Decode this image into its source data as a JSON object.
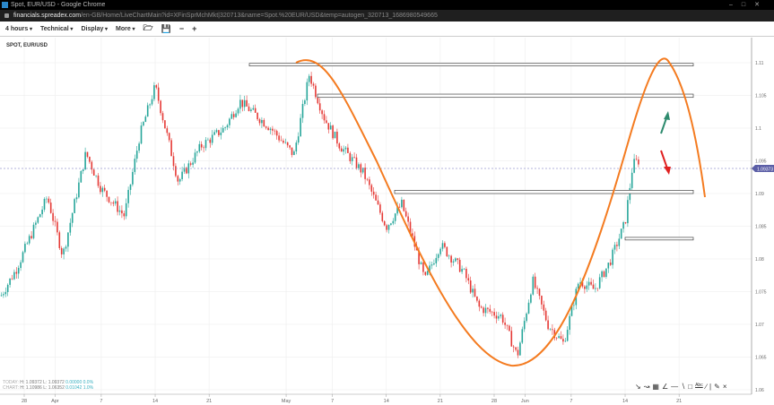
{
  "window": {
    "title": "Spot, EUR/USD - Google Chrome",
    "url_host": "financials.spreadex.com",
    "url_path": "/en-GB/Home/LiveChartMain?id=XFinSprMchMkt|320713&name=Spot.%20EUR/USD&temp=autogen_320713_1686980549665"
  },
  "toolbar": {
    "interval": "4 hours",
    "technical": "Technical",
    "display": "Display",
    "more": "More",
    "open_icon": "folder-open-icon",
    "save_icon": "save-icon",
    "zoom_out": "−",
    "zoom_in": "+"
  },
  "chart_title": "SPOT, EUR/USD",
  "legend": {
    "today": {
      "label": "TODAY:",
      "h": "H: 1.09372",
      "l": "L: 1.09372",
      "chg": "0.00000",
      "pct": "0.0%"
    },
    "chart": {
      "label": "CHART:",
      "h": "H: 1.10986",
      "l": "L: 1.06352",
      "chg": "0.01042",
      "pct": "1.0%"
    }
  },
  "drawing_tools": [
    "arrow",
    "curve",
    "fib-grid",
    "pitchfork",
    "horizontal-line",
    "trend-line",
    "rectangle",
    "text",
    "ray",
    "separator",
    "pencil",
    "close"
  ],
  "colors": {
    "up": "#26a69a",
    "down": "#e53935",
    "annotation": "#f47b20",
    "price_tag": "#5b5ea6",
    "up_arrow": "#2e8b6e",
    "down_arrow": "#e02020"
  },
  "chart_data": {
    "type": "candlestick",
    "title": "SPOT, EUR/USD",
    "current_price": "1.09373",
    "y_ticks": [
      "1.11",
      "1.105",
      "1.1",
      "1.095",
      "1.09",
      "1.085",
      "1.08",
      "1.075",
      "1.07",
      "1.065",
      "1.06"
    ],
    "ylim": [
      1.06,
      1.11
    ],
    "x_ticks": [
      "28",
      "Apr",
      "7",
      "14",
      "21",
      "May",
      "7",
      "14",
      "21",
      "28",
      "Jun",
      "7",
      "14",
      "21"
    ],
    "x_tick_dates": [
      "2023-03-28",
      "2023-04-01",
      "2023-04-07",
      "2023-04-14",
      "2023-04-21",
      "2023-05-01",
      "2023-05-07",
      "2023-05-14",
      "2023-05-21",
      "2023-05-28",
      "2023-06-01",
      "2023-06-07",
      "2023-06-14",
      "2023-06-21"
    ],
    "price_path": [
      [
        "2023-03-25",
        1.0744
      ],
      [
        "2023-03-27",
        1.0785
      ],
      [
        "2023-03-31",
        1.0895
      ],
      [
        "2023-04-02",
        1.0805
      ],
      [
        "2023-04-05",
        1.0962
      ],
      [
        "2023-04-07",
        1.0907
      ],
      [
        "2023-04-10",
        1.0866
      ],
      [
        "2023-04-12",
        1.0989
      ],
      [
        "2023-04-14",
        1.1064
      ],
      [
        "2023-04-17",
        1.0918
      ],
      [
        "2023-04-20",
        1.0973
      ],
      [
        "2023-04-23",
        1.1
      ],
      [
        "2023-04-25",
        1.1041
      ],
      [
        "2023-04-29",
        1.1
      ],
      [
        "2023-05-02",
        1.0959
      ],
      [
        "2023-05-04",
        1.1082
      ],
      [
        "2023-05-06",
        1.1014
      ],
      [
        "2023-05-08",
        1.0973
      ],
      [
        "2023-05-11",
        1.0932
      ],
      [
        "2023-05-14",
        1.0849
      ],
      [
        "2023-05-16",
        1.0884
      ],
      [
        "2023-05-18",
        1.0808
      ],
      [
        "2023-05-19",
        1.0767
      ],
      [
        "2023-05-21",
        1.0822
      ],
      [
        "2023-05-24",
        1.0781
      ],
      [
        "2023-05-26",
        1.0726
      ],
      [
        "2023-05-29",
        1.0712
      ],
      [
        "2023-05-31",
        1.0651
      ],
      [
        "2023-06-02",
        1.0767
      ],
      [
        "2023-06-04",
        1.0699
      ],
      [
        "2023-06-06",
        1.0671
      ],
      [
        "2023-06-08",
        1.0767
      ],
      [
        "2023-06-10",
        1.0753
      ],
      [
        "2023-06-12",
        1.0795
      ],
      [
        "2023-06-14",
        1.0856
      ],
      [
        "2023-06-15",
        1.0945
      ],
      [
        "2023-06-16",
        1.0952
      ],
      [
        "2023-06-16",
        1.0937
      ]
    ],
    "zones": [
      [
        1.1099,
        1.1095
      ],
      [
        1.1052,
        1.1047
      ],
      [
        1.0905,
        1.09
      ],
      [
        1.0833,
        1.0829
      ]
    ]
  }
}
